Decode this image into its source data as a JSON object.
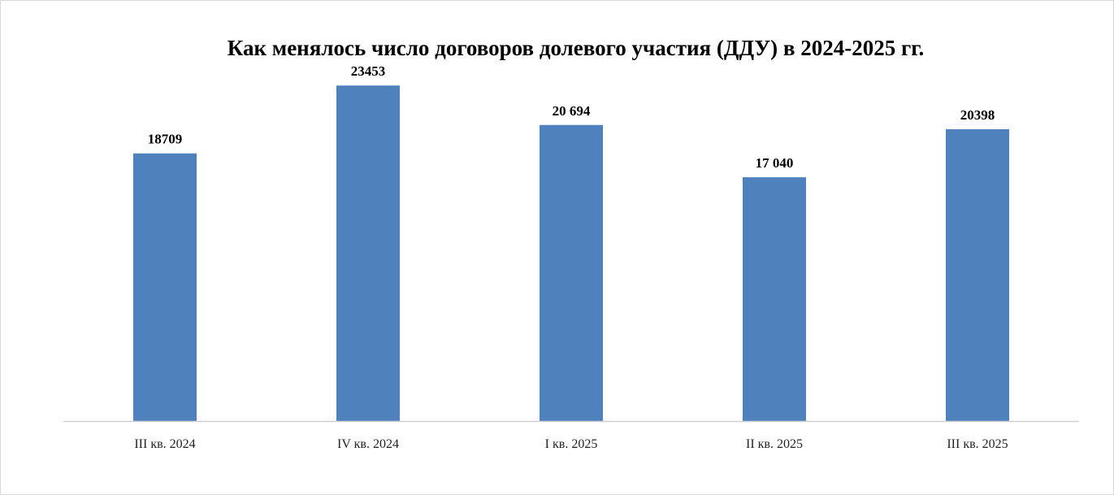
{
  "chart_data": {
    "type": "bar",
    "title": "Как менялось число договоров долевого участия (ДДУ) в 2024-2025 гг.",
    "categories": [
      "III кв. 2024",
      "IV кв. 2024",
      "I кв. 2025",
      "II кв. 2025",
      "III кв. 2025"
    ],
    "values": [
      18709,
      23453,
      20694,
      17040,
      20398
    ],
    "data_labels": [
      "18709",
      "23453",
      "20 694",
      "17 040",
      "20398"
    ],
    "xlabel": "",
    "ylabel": "",
    "ylim": [
      0,
      25000
    ],
    "grid": false,
    "legend": "none",
    "bar_color": "#4f81bd",
    "axis_color": "#d0d0d0"
  }
}
